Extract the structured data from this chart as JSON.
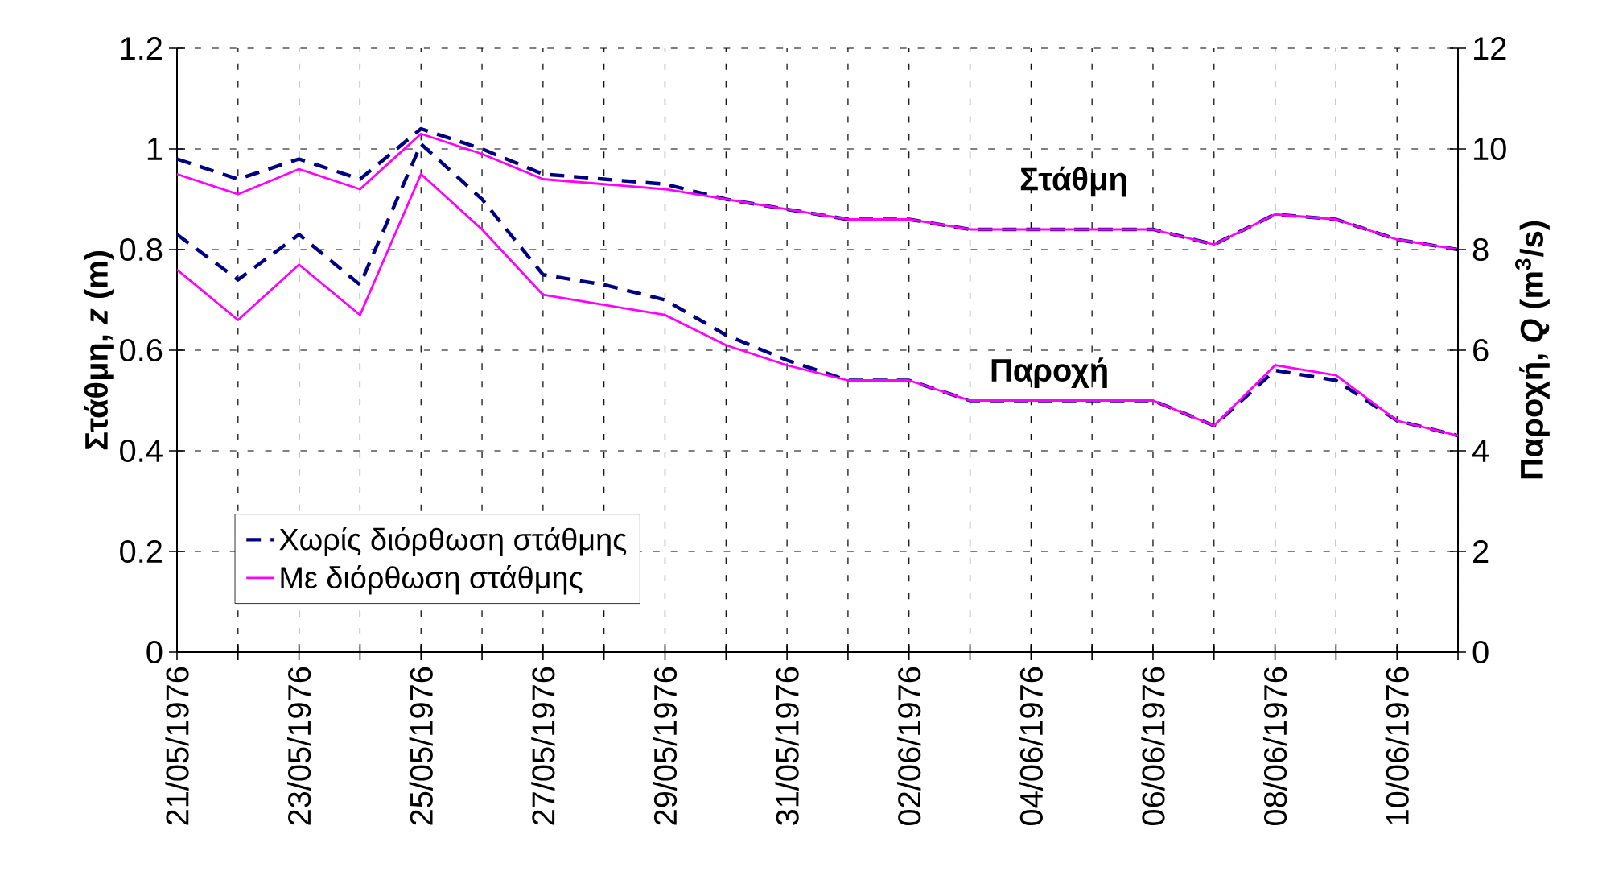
{
  "chart_data": {
    "type": "line",
    "categories": [
      "21/05/1976",
      null,
      "23/05/1976",
      null,
      "25/05/1976",
      null,
      "27/05/1976",
      null,
      "29/05/1976",
      null,
      "31/05/1976",
      null,
      "02/06/1976",
      null,
      "04/06/1976",
      null,
      "06/06/1976",
      null,
      "08/06/1976",
      null,
      "10/06/1976",
      null
    ],
    "series": [
      {
        "name": "Χωρίς διόρθωση στάθμης",
        "color": "#000080",
        "line_style": "dashed",
        "values": [
          0.98,
          0.94,
          0.98,
          0.94,
          1.04,
          1.0,
          0.95,
          0.94,
          0.93,
          0.9,
          0.88,
          0.86,
          0.86,
          0.84,
          0.84,
          0.84,
          0.84,
          0.81,
          0.87,
          0.86,
          0.82,
          0.8
        ]
      },
      {
        "name": "Με διόρθωση στάθμης",
        "color": "#ff00ff",
        "line_style": "solid",
        "values": [
          0.95,
          0.91,
          0.96,
          0.92,
          1.03,
          0.99,
          0.94,
          0.93,
          0.92,
          0.9,
          0.88,
          0.86,
          0.86,
          0.84,
          0.84,
          0.84,
          0.84,
          0.81,
          0.87,
          0.86,
          0.82,
          0.8
        ]
      },
      {
        "color": "#000080",
        "line_style": "dashed",
        "axis": "y2",
        "values": [
          8.3,
          7.4,
          8.3,
          7.3,
          10.1,
          9.0,
          7.5,
          7.3,
          7.0,
          6.3,
          5.8,
          5.4,
          5.4,
          5.0,
          5.0,
          5.0,
          5.0,
          4.5,
          5.6,
          5.4,
          4.6,
          4.3
        ]
      },
      {
        "color": "#ff00ff",
        "line_style": "solid",
        "axis": "y2",
        "values": [
          7.6,
          6.6,
          7.7,
          6.7,
          9.5,
          8.4,
          7.1,
          6.9,
          6.7,
          6.1,
          5.7,
          5.4,
          5.4,
          5.0,
          5.0,
          5.0,
          5.0,
          4.5,
          5.7,
          5.5,
          4.6,
          4.3
        ]
      }
    ],
    "ylabel": "Στάθμη, *z* (m)",
    "y2label": "Παροχή, *Q* (m$^{3}$/s)",
    "ylim": [
      0,
      1.2
    ],
    "yticks": [
      0,
      0.2,
      0.4,
      0.6,
      0.8,
      1,
      1.2
    ],
    "y2lim": [
      0,
      12
    ],
    "y2ticks": [
      0,
      2,
      4,
      6,
      8,
      10,
      12
    ],
    "annotations": [
      "Στάθμη",
      "Παροχή"
    ],
    "grid": true,
    "legend": "bottom left",
    "marker": "none"
  }
}
